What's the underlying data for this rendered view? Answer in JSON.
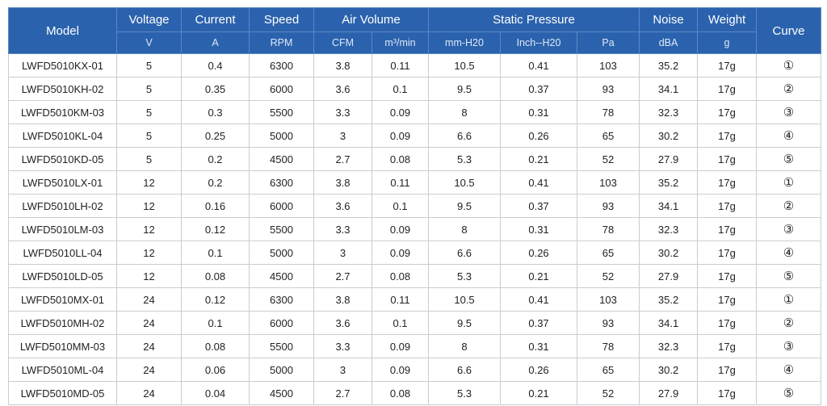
{
  "header": {
    "model": "Model",
    "curve": "Curve",
    "groups": [
      {
        "label": "Voltage",
        "span": 1
      },
      {
        "label": "Current",
        "span": 1
      },
      {
        "label": "Speed",
        "span": 1
      },
      {
        "label": "Air Volume",
        "span": 2
      },
      {
        "label": "Static Pressure",
        "span": 3
      },
      {
        "label": "Noise",
        "span": 1
      },
      {
        "label": "Weight",
        "span": 1
      }
    ],
    "units": [
      "V",
      "A",
      "RPM",
      "CFM",
      "m³/min",
      "mm-H20",
      "Inch--H20",
      "Pa",
      "dBA",
      "g"
    ]
  },
  "rows": [
    [
      "LWFD5010KX-01",
      "5",
      "0.4",
      "6300",
      "3.8",
      "0.11",
      "10.5",
      "0.41",
      "103",
      "35.2",
      "17g",
      "①"
    ],
    [
      "LWFD5010KH-02",
      "5",
      "0.35",
      "6000",
      "3.6",
      "0.1",
      "9.5",
      "0.37",
      "93",
      "34.1",
      "17g",
      "②"
    ],
    [
      "LWFD5010KM-03",
      "5",
      "0.3",
      "5500",
      "3.3",
      "0.09",
      "8",
      "0.31",
      "78",
      "32.3",
      "17g",
      "③"
    ],
    [
      "LWFD5010KL-04",
      "5",
      "0.25",
      "5000",
      "3",
      "0.09",
      "6.6",
      "0.26",
      "65",
      "30.2",
      "17g",
      "④"
    ],
    [
      "LWFD5010KD-05",
      "5",
      "0.2",
      "4500",
      "2.7",
      "0.08",
      "5.3",
      "0.21",
      "52",
      "27.9",
      "17g",
      "⑤"
    ],
    [
      "LWFD5010LX-01",
      "12",
      "0.2",
      "6300",
      "3.8",
      "0.11",
      "10.5",
      "0.41",
      "103",
      "35.2",
      "17g",
      "①"
    ],
    [
      "LWFD5010LH-02",
      "12",
      "0.16",
      "6000",
      "3.6",
      "0.1",
      "9.5",
      "0.37",
      "93",
      "34.1",
      "17g",
      "②"
    ],
    [
      "LWFD5010LM-03",
      "12",
      "0.12",
      "5500",
      "3.3",
      "0.09",
      "8",
      "0.31",
      "78",
      "32.3",
      "17g",
      "③"
    ],
    [
      "LWFD5010LL-04",
      "12",
      "0.1",
      "5000",
      "3",
      "0.09",
      "6.6",
      "0.26",
      "65",
      "30.2",
      "17g",
      "④"
    ],
    [
      "LWFD5010LD-05",
      "12",
      "0.08",
      "4500",
      "2.7",
      "0.08",
      "5.3",
      "0.21",
      "52",
      "27.9",
      "17g",
      "⑤"
    ],
    [
      "LWFD5010MX-01",
      "24",
      "0.12",
      "6300",
      "3.8",
      "0.11",
      "10.5",
      "0.41",
      "103",
      "35.2",
      "17g",
      "①"
    ],
    [
      "LWFD5010MH-02",
      "24",
      "0.1",
      "6000",
      "3.6",
      "0.1",
      "9.5",
      "0.37",
      "93",
      "34.1",
      "17g",
      "②"
    ],
    [
      "LWFD5010MM-03",
      "24",
      "0.08",
      "5500",
      "3.3",
      "0.09",
      "8",
      "0.31",
      "78",
      "32.3",
      "17g",
      "③"
    ],
    [
      "LWFD5010ML-04",
      "24",
      "0.06",
      "5000",
      "3",
      "0.09",
      "6.6",
      "0.26",
      "65",
      "30.2",
      "17g",
      "④"
    ],
    [
      "LWFD5010MD-05",
      "24",
      "0.04",
      "4500",
      "2.7",
      "0.08",
      "5.3",
      "0.21",
      "52",
      "27.9",
      "17g",
      "⑤"
    ]
  ]
}
